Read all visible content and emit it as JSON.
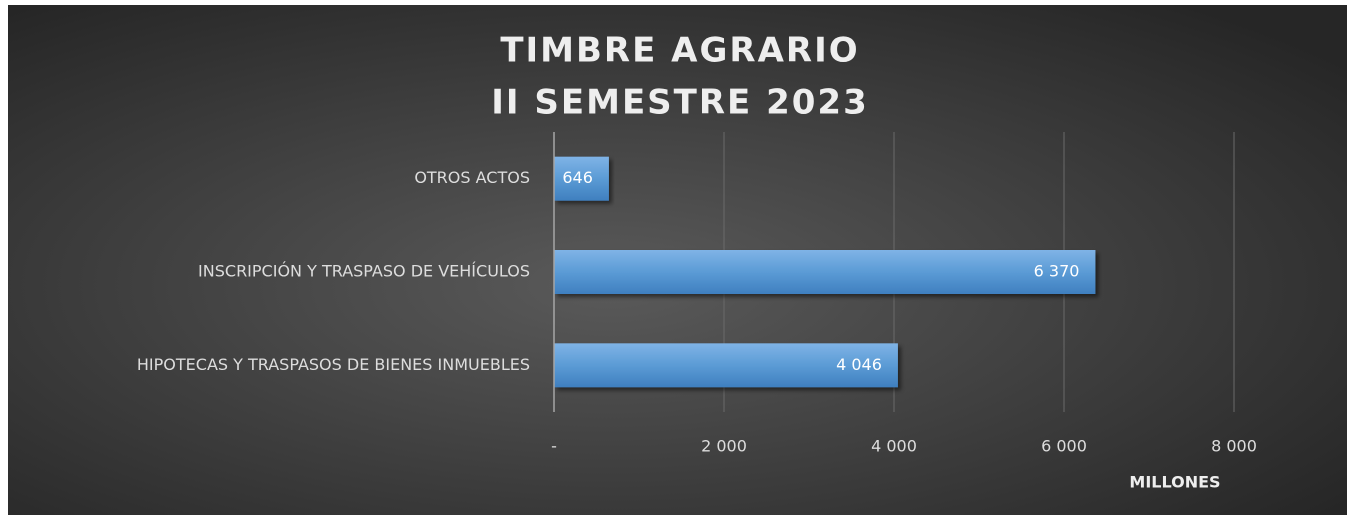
{
  "chart_data": {
    "type": "barh",
    "title": [
      "TIMBRE AGRARIO",
      "II SEMESTRE 2023"
    ],
    "categories": [
      "OTROS ACTOS",
      "INSCRIPCIÓN Y TRASPASO DE VEHÍCULOS",
      "HIPOTECAS Y TRASPASOS DE BIENES INMUEBLES"
    ],
    "values": [
      646,
      6370,
      4046
    ],
    "value_labels": [
      "646",
      "6 370",
      "4 046"
    ],
    "color": "#5b9bd5",
    "xlim": [
      0,
      8000
    ],
    "xticks": [
      {
        "value": 0,
        "label": "-"
      },
      {
        "value": 2000,
        "label": "2 000"
      },
      {
        "value": 4000,
        "label": "4 000"
      },
      {
        "value": 6000,
        "label": "6 000"
      },
      {
        "value": 8000,
        "label": "8 000"
      }
    ],
    "xlabel": "MILLONES",
    "grid": true
  }
}
